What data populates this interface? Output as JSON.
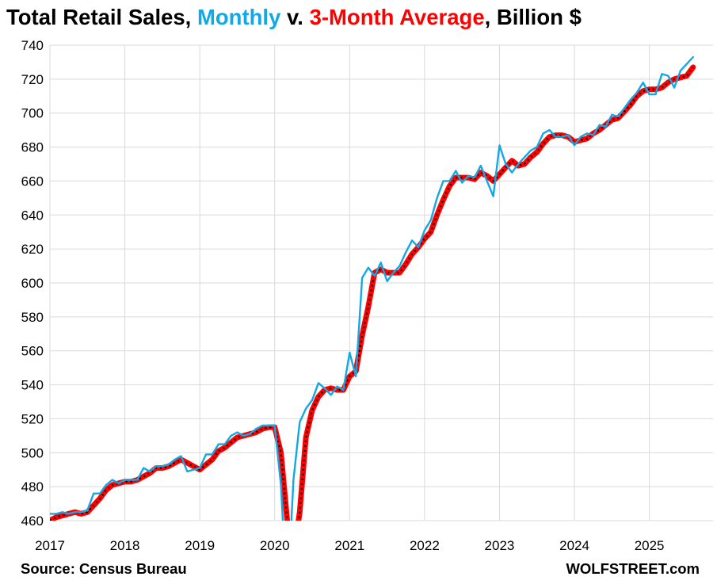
{
  "title": {
    "part1": "Total Retail Sales, ",
    "part2": "Monthly",
    "part3": " v. ",
    "part4": "3-Month Average",
    "part5": ", Billion $"
  },
  "source": "Source: Census Bureau",
  "brand": "WOLFSTREET.com",
  "colors": {
    "monthly": "#11a8e6",
    "average": "#ff0000",
    "average_dots": "#000000",
    "grid": "#d9d9d9"
  },
  "chart_data": {
    "type": "line",
    "title": "Total Retail Sales, Monthly v. 3-Month Average, Billion $",
    "xlabel": "",
    "ylabel": "",
    "x_start": "2017-01",
    "xlim": [
      2017,
      2025.85
    ],
    "ylim": [
      460,
      740
    ],
    "yticks": [
      460,
      480,
      500,
      520,
      540,
      560,
      580,
      600,
      620,
      640,
      660,
      680,
      700,
      720,
      740
    ],
    "xticks": [
      "2017",
      "2018",
      "2019",
      "2020",
      "2021",
      "2022",
      "2023",
      "2024",
      "2025"
    ],
    "grid": true,
    "legend": "none",
    "series": [
      {
        "name": "Monthly",
        "values": [
          464,
          464,
          465,
          464,
          465,
          465,
          466,
          476,
          476,
          481,
          484,
          482,
          484,
          484,
          484,
          491,
          489,
          492,
          492,
          493,
          496,
          498,
          489,
          490,
          491,
          499,
          499,
          505,
          505,
          510,
          512,
          510,
          511,
          514,
          516,
          516,
          516,
          481,
          412,
          484,
          518,
          526,
          531,
          541,
          538,
          534,
          539,
          537,
          559,
          545,
          603,
          609,
          604,
          612,
          601,
          606,
          610,
          618,
          625,
          621,
          631,
          637,
          650,
          660,
          660,
          666,
          659,
          663,
          662,
          669,
          660,
          651,
          681,
          670,
          665,
          670,
          674,
          678,
          680,
          688,
          690,
          686,
          686,
          687,
          681,
          686,
          688,
          687,
          693,
          692,
          699,
          698,
          703,
          708,
          712,
          718,
          711,
          711,
          723,
          722,
          715,
          725,
          729,
          733
        ]
      },
      {
        "name": "3-Month Average",
        "values": [
          460,
          462,
          463,
          464,
          465,
          464,
          465,
          469,
          473,
          478,
          481,
          482,
          483,
          483,
          484,
          486,
          488,
          491,
          491,
          492,
          494,
          496,
          494,
          492,
          490,
          493,
          496,
          501,
          503,
          506,
          509,
          510,
          511,
          512,
          514,
          515,
          515,
          500,
          460,
          440,
          465,
          509,
          525,
          533,
          537,
          538,
          537,
          537,
          545,
          548,
          569,
          586,
          606,
          608,
          606,
          606,
          606,
          611,
          617,
          621,
          626,
          630,
          640,
          649,
          657,
          662,
          662,
          662,
          661,
          665,
          663,
          660,
          664,
          668,
          672,
          669,
          670,
          674,
          677,
          682,
          686,
          687,
          687,
          686,
          683,
          684,
          685,
          688,
          690,
          693,
          696,
          697,
          701,
          705,
          710,
          713,
          714,
          714,
          715,
          718,
          720,
          721,
          722,
          727
        ]
      }
    ]
  }
}
